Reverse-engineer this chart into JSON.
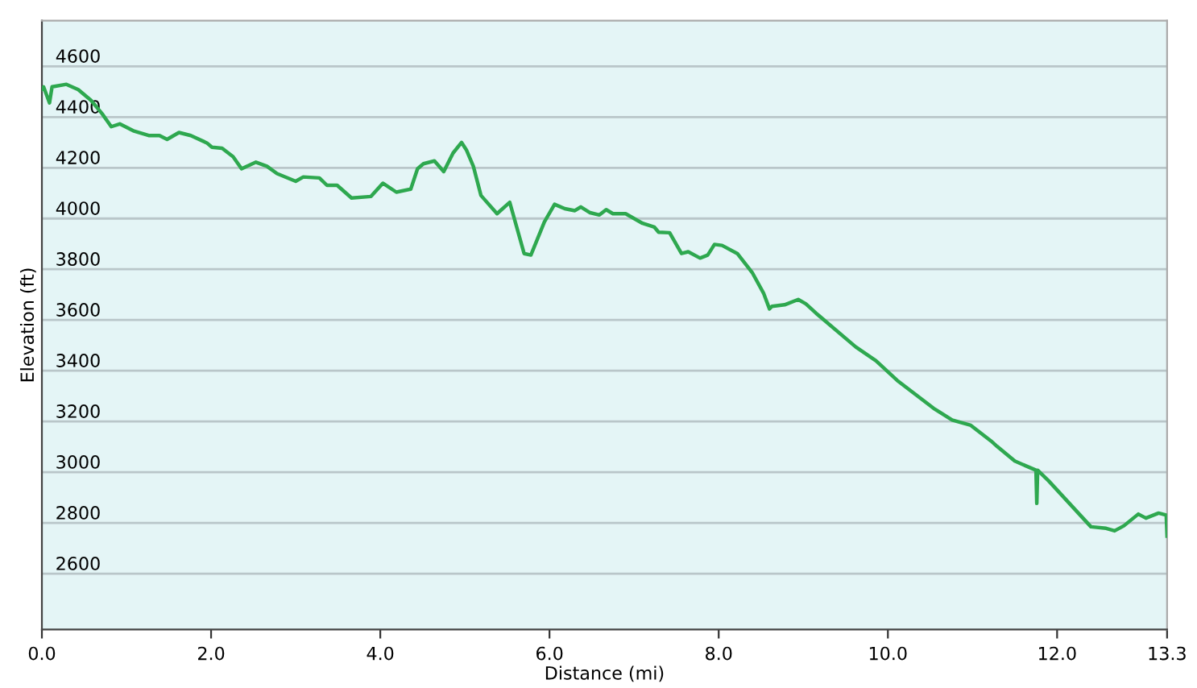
{
  "chart_data": {
    "type": "line",
    "xlabel": "Distance (mi)",
    "ylabel": "Elevation (ft)",
    "xlim": [
      0,
      13.3
    ],
    "ylim": [
      2380,
      4780
    ],
    "xticks": [
      {
        "value": 0,
        "label": "0.0"
      },
      {
        "value": 2,
        "label": "2.0"
      },
      {
        "value": 4,
        "label": "4.0"
      },
      {
        "value": 6,
        "label": "6.0"
      },
      {
        "value": 8,
        "label": "8.0"
      },
      {
        "value": 10,
        "label": "10.0"
      },
      {
        "value": 12,
        "label": "12.0"
      },
      {
        "value": 13.3,
        "label": "13.3"
      }
    ],
    "yticks": [
      2600,
      2800,
      3000,
      3200,
      3400,
      3600,
      3800,
      4000,
      4200,
      4400,
      4600
    ],
    "grid": "y",
    "marker": "none",
    "line_style": "solid",
    "series": [
      {
        "color": "#2ea84f",
        "x": [
          0,
          0.02,
          0.09,
          0.12,
          0.29,
          0.43,
          0.58,
          0.71,
          0.82,
          0.92,
          1.08,
          1.27,
          1.39,
          1.48,
          1.62,
          1.76,
          1.95,
          2.01,
          2.13,
          2.26,
          2.36,
          2.53,
          2.66,
          2.78,
          3.0,
          3.09,
          3.28,
          3.37,
          3.49,
          3.66,
          3.89,
          4.03,
          4.19,
          4.36,
          4.44,
          4.51,
          4.64,
          4.75,
          4.86,
          4.96,
          5.02,
          5.1,
          5.19,
          5.38,
          5.53,
          5.7,
          5.78,
          5.94,
          6.06,
          6.18,
          6.3,
          6.37,
          6.48,
          6.59,
          6.67,
          6.75,
          6.9,
          7.1,
          7.24,
          7.29,
          7.42,
          7.56,
          7.64,
          7.78,
          7.87,
          7.95,
          8.04,
          8.22,
          8.4,
          8.53,
          8.6,
          8.63,
          8.78,
          8.94,
          9.03,
          9.15,
          9.62,
          9.86,
          10.11,
          10.54,
          10.76,
          10.98,
          11.22,
          11.29,
          11.5,
          11.75,
          11.76,
          11.77,
          11.9,
          12.4,
          12.58,
          12.68,
          12.79,
          12.96,
          13.05,
          13.2,
          13.29,
          13.3
        ],
        "values": [
          4510,
          4519,
          4456,
          4519,
          4529,
          4508,
          4466,
          4414,
          4362,
          4373,
          4346,
          4327,
          4327,
          4312,
          4339,
          4327,
          4298,
          4281,
          4277,
          4244,
          4196,
          4222,
          4206,
          4177,
          4147,
          4164,
          4160,
          4131,
          4131,
          4081,
          4087,
          4139,
          4104,
          4116,
          4196,
          4216,
          4227,
          4185,
          4258,
          4300,
          4269,
          4206,
          4091,
          4019,
          4064,
          3862,
          3856,
          3987,
          4056,
          4039,
          4031,
          4046,
          4023,
          4014,
          4035,
          4019,
          4019,
          3981,
          3966,
          3946,
          3944,
          3862,
          3869,
          3844,
          3856,
          3898,
          3894,
          3862,
          3785,
          3706,
          3644,
          3654,
          3660,
          3681,
          3664,
          3627,
          3494,
          3439,
          3362,
          3252,
          3206,
          3185,
          3123,
          3102,
          3044,
          3008,
          2877,
          3008,
          2966,
          2785,
          2779,
          2769,
          2789,
          2835,
          2819,
          2839,
          2831,
          2748
        ]
      }
    ]
  }
}
